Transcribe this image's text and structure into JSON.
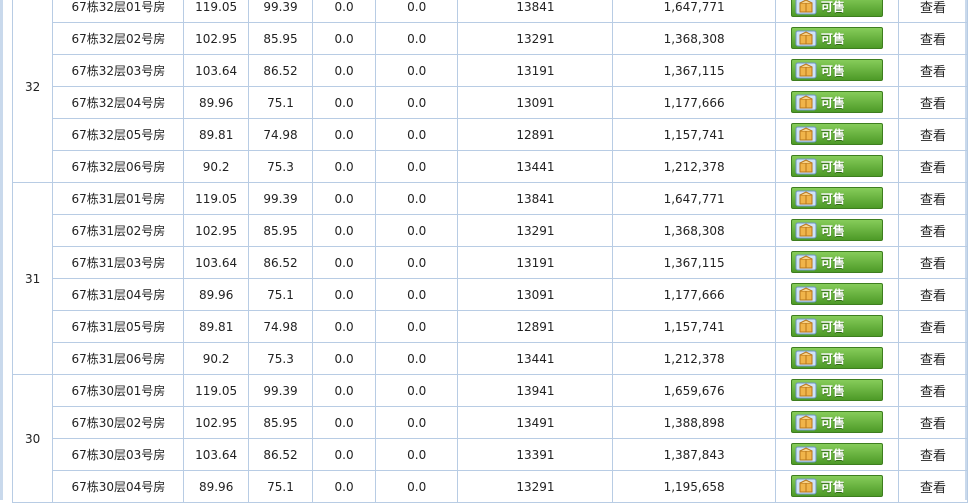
{
  "status_label": "可售",
  "view_label": "查看",
  "colors": {
    "border": "#b8cce4",
    "button_green": "#5aa82f",
    "box_icon": "#f0b44a"
  },
  "groups": [
    {
      "floor": "32",
      "rows": [
        {
          "room": "67栋32层01号房",
          "build_area": "119.05",
          "inner_area": "99.39",
          "col4": "0.0",
          "col5": "0.0",
          "unit_price": "13841",
          "total": "1,647,771"
        },
        {
          "room": "67栋32层02号房",
          "build_area": "102.95",
          "inner_area": "85.95",
          "col4": "0.0",
          "col5": "0.0",
          "unit_price": "13291",
          "total": "1,368,308"
        },
        {
          "room": "67栋32层03号房",
          "build_area": "103.64",
          "inner_area": "86.52",
          "col4": "0.0",
          "col5": "0.0",
          "unit_price": "13191",
          "total": "1,367,115"
        },
        {
          "room": "67栋32层04号房",
          "build_area": "89.96",
          "inner_area": "75.1",
          "col4": "0.0",
          "col5": "0.0",
          "unit_price": "13091",
          "total": "1,177,666"
        },
        {
          "room": "67栋32层05号房",
          "build_area": "89.81",
          "inner_area": "74.98",
          "col4": "0.0",
          "col5": "0.0",
          "unit_price": "12891",
          "total": "1,157,741"
        },
        {
          "room": "67栋32层06号房",
          "build_area": "90.2",
          "inner_area": "75.3",
          "col4": "0.0",
          "col5": "0.0",
          "unit_price": "13441",
          "total": "1,212,378"
        }
      ]
    },
    {
      "floor": "31",
      "rows": [
        {
          "room": "67栋31层01号房",
          "build_area": "119.05",
          "inner_area": "99.39",
          "col4": "0.0",
          "col5": "0.0",
          "unit_price": "13841",
          "total": "1,647,771"
        },
        {
          "room": "67栋31层02号房",
          "build_area": "102.95",
          "inner_area": "85.95",
          "col4": "0.0",
          "col5": "0.0",
          "unit_price": "13291",
          "total": "1,368,308"
        },
        {
          "room": "67栋31层03号房",
          "build_area": "103.64",
          "inner_area": "86.52",
          "col4": "0.0",
          "col5": "0.0",
          "unit_price": "13191",
          "total": "1,367,115"
        },
        {
          "room": "67栋31层04号房",
          "build_area": "89.96",
          "inner_area": "75.1",
          "col4": "0.0",
          "col5": "0.0",
          "unit_price": "13091",
          "total": "1,177,666"
        },
        {
          "room": "67栋31层05号房",
          "build_area": "89.81",
          "inner_area": "74.98",
          "col4": "0.0",
          "col5": "0.0",
          "unit_price": "12891",
          "total": "1,157,741"
        },
        {
          "room": "67栋31层06号房",
          "build_area": "90.2",
          "inner_area": "75.3",
          "col4": "0.0",
          "col5": "0.0",
          "unit_price": "13441",
          "total": "1,212,378"
        }
      ]
    },
    {
      "floor": "30",
      "rows": [
        {
          "room": "67栋30层01号房",
          "build_area": "119.05",
          "inner_area": "99.39",
          "col4": "0.0",
          "col5": "0.0",
          "unit_price": "13941",
          "total": "1,659,676"
        },
        {
          "room": "67栋30层02号房",
          "build_area": "102.95",
          "inner_area": "85.95",
          "col4": "0.0",
          "col5": "0.0",
          "unit_price": "13491",
          "total": "1,388,898"
        },
        {
          "room": "67栋30层03号房",
          "build_area": "103.64",
          "inner_area": "86.52",
          "col4": "0.0",
          "col5": "0.0",
          "unit_price": "13391",
          "total": "1,387,843"
        },
        {
          "room": "67栋30层04号房",
          "build_area": "89.96",
          "inner_area": "75.1",
          "col4": "0.0",
          "col5": "0.0",
          "unit_price": "13291",
          "total": "1,195,658"
        }
      ]
    }
  ]
}
